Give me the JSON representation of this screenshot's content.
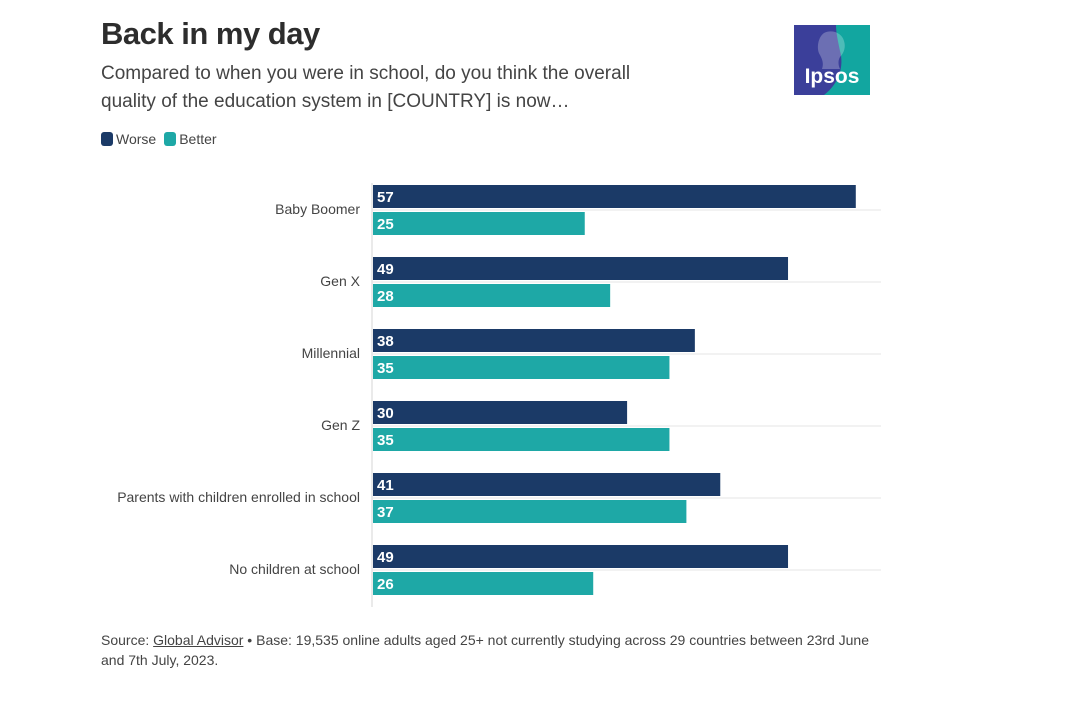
{
  "header": {
    "title": "Back in my day",
    "subtitle": "Compared to when you were in school, do you think the overall quality of the education system in [COUNTRY] is now…"
  },
  "logo": {
    "text": "Ipsos",
    "icon": "ipsos-logo-icon"
  },
  "legend": {
    "items": [
      {
        "label": "Worse",
        "color": "#1b3a67"
      },
      {
        "label": "Better",
        "color": "#1ea8a6"
      }
    ]
  },
  "chart_data": {
    "type": "bar",
    "orientation": "horizontal",
    "categories": [
      "Baby Boomer",
      "Gen X",
      "Millennial",
      "Gen Z",
      "Parents with children enrolled in school",
      "No children at school"
    ],
    "series": [
      {
        "name": "Worse",
        "color": "#1b3a67",
        "values": [
          57,
          49,
          38,
          30,
          41,
          49
        ]
      },
      {
        "name": "Better",
        "color": "#1ea8a6",
        "values": [
          25,
          28,
          35,
          35,
          37,
          26
        ]
      }
    ],
    "title": "Back in my day",
    "xlabel": "",
    "ylabel": "",
    "xlim": [
      0,
      60
    ],
    "legend_position": "top-left",
    "grid": false
  },
  "footer": {
    "source_prefix": "Source: ",
    "source_link": "Global Advisor",
    "source_rest": " • Base: 19,535 online adults aged 25+ not currently studying across 29 countries between 23rd June and 7th July, 2023."
  }
}
